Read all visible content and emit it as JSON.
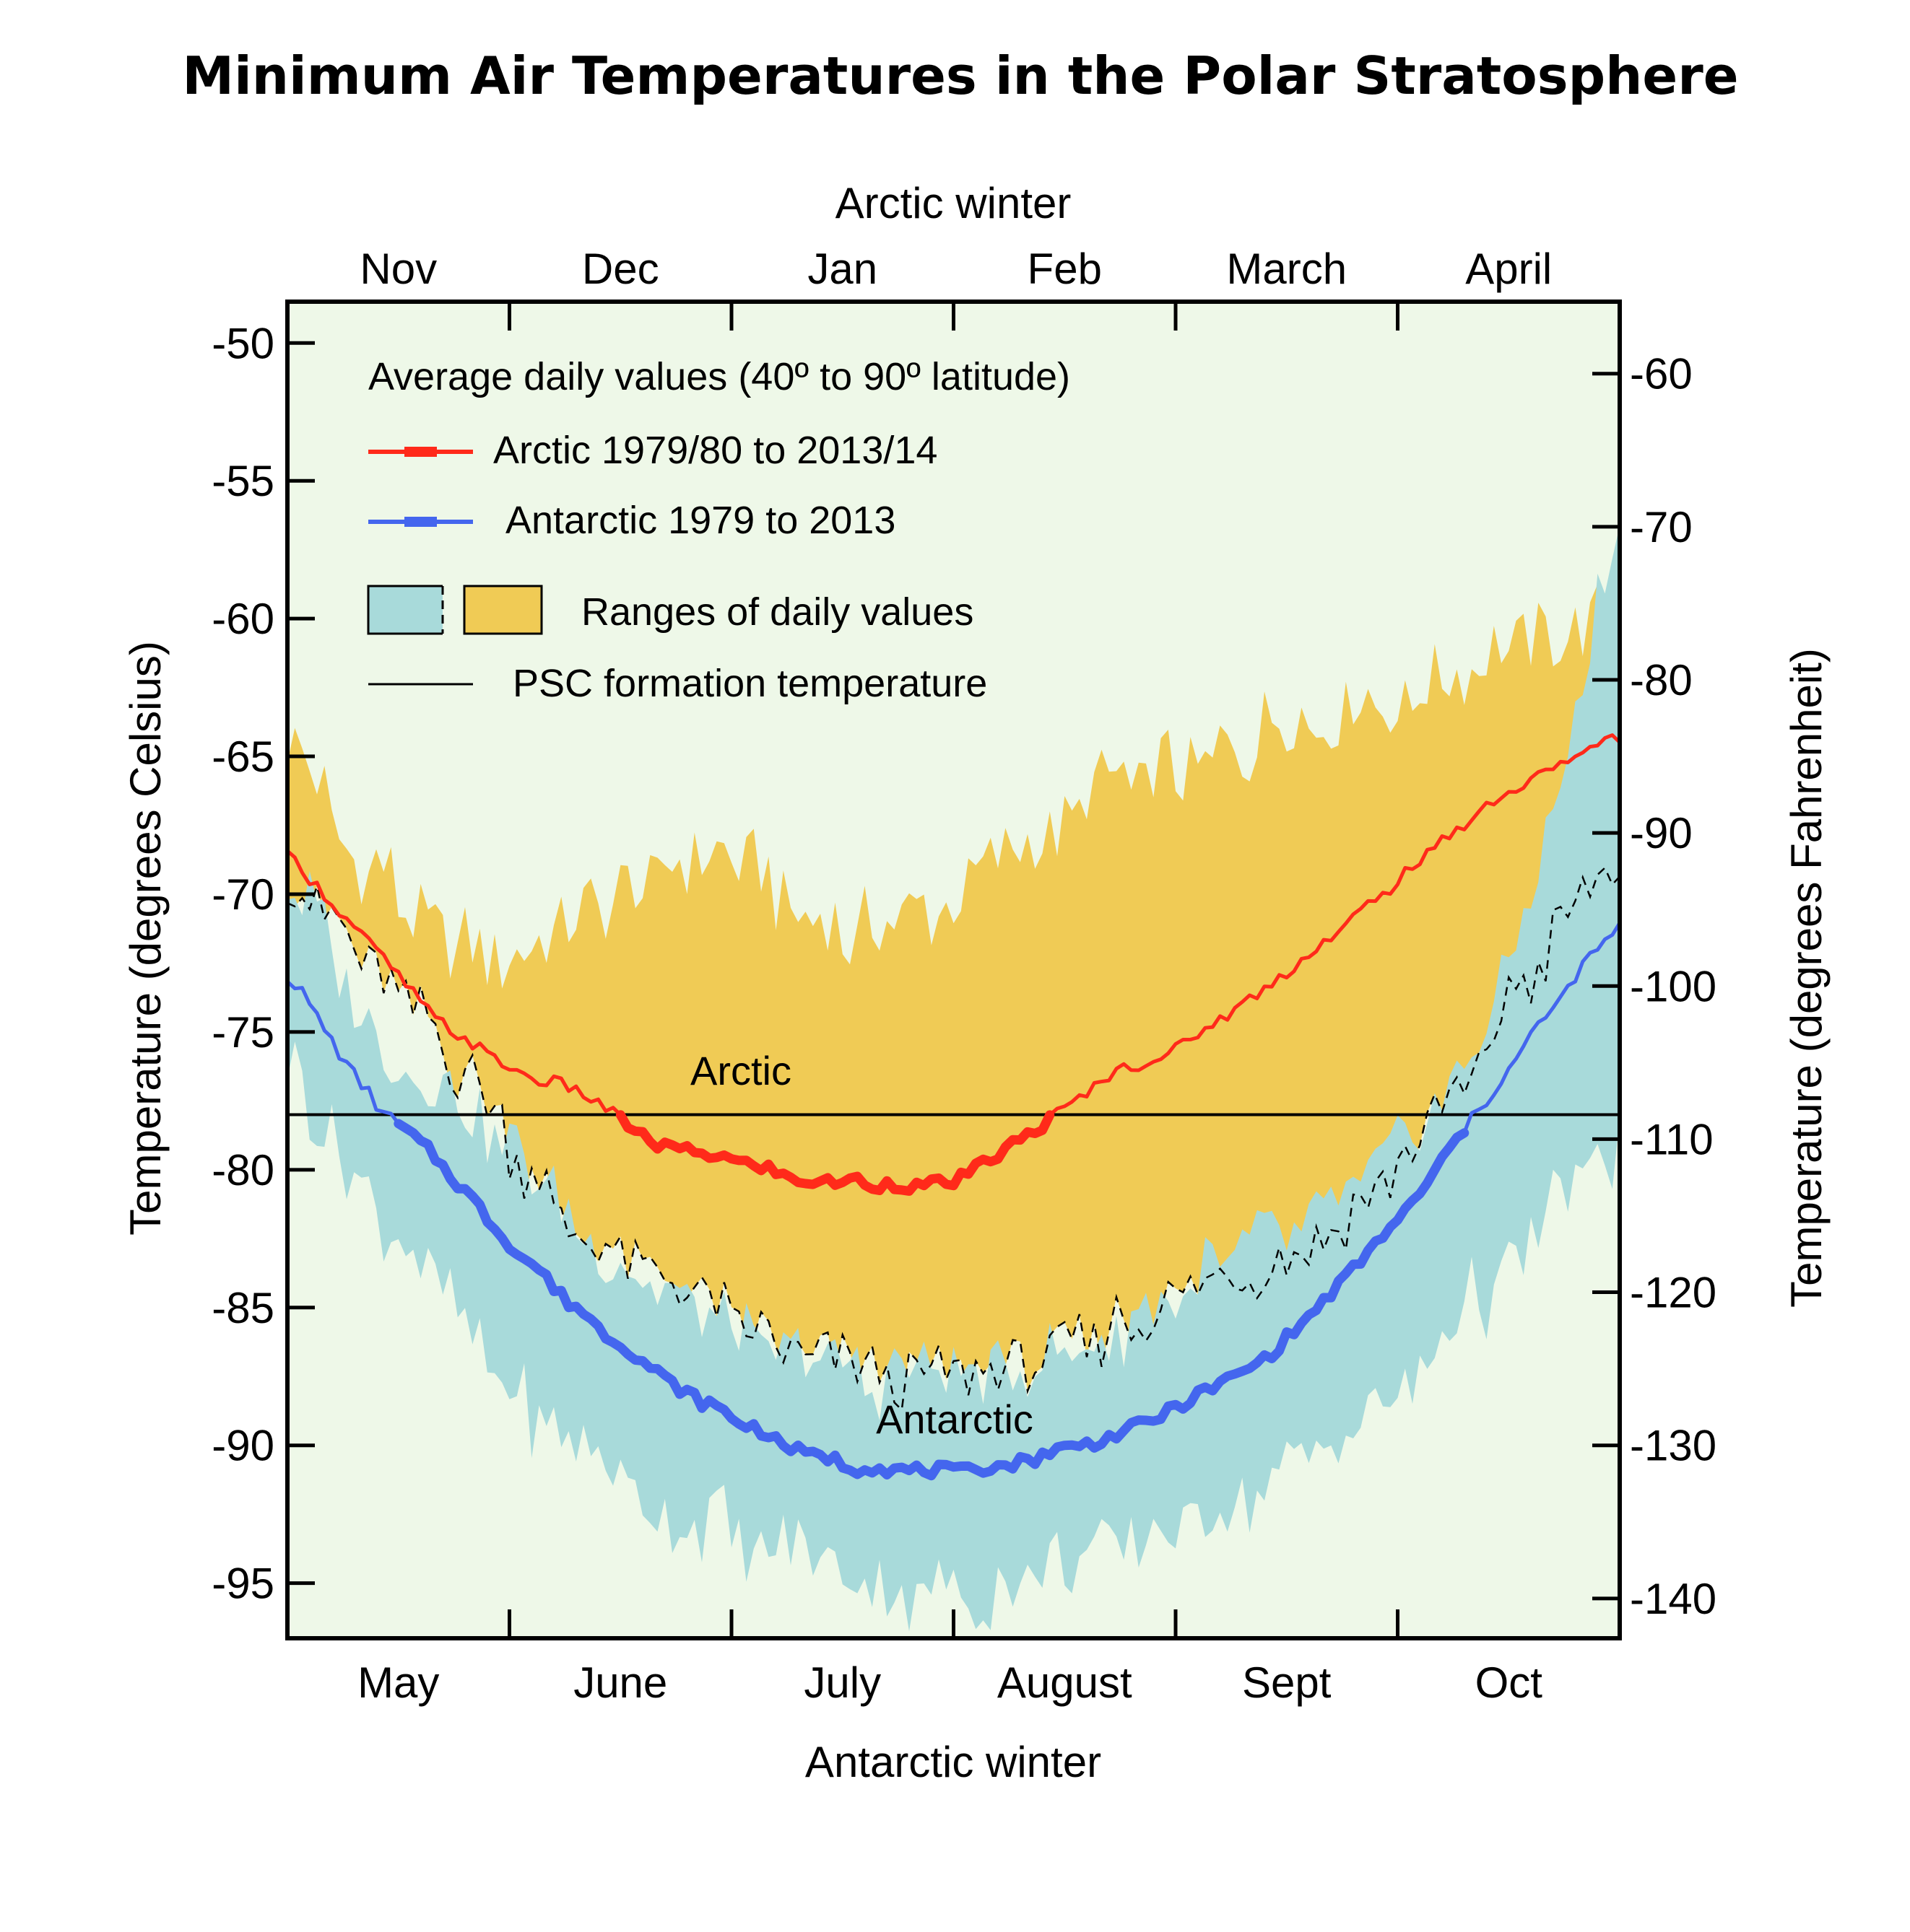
{
  "colors": {
    "plot_bg": "#eef8e8",
    "arctic_line": "#ff2a1a",
    "antarctic_line": "#4466ee",
    "arctic_range": "#f0cb55",
    "antarctic_range": "#a8dada",
    "psc_line": "#000000"
  },
  "chart_data": {
    "type": "area",
    "title": "Minimum Air Temperatures in the Polar Stratosphere",
    "top_axis_title": "Arctic winter",
    "bottom_axis_title": "Antarctic winter",
    "left_axis_title": "Temperature (degrees Celsius)",
    "right_axis_title": "Temperature (degrees Fahrenheit)",
    "arctic_months": [
      "Nov",
      "Dec",
      "Jan",
      "Feb",
      "March",
      "April"
    ],
    "antarctic_months": [
      "May",
      "June",
      "July",
      "August",
      "Sept",
      "Oct"
    ],
    "x_unit": "day of season (0 = start of Nov / May)",
    "xlim": [
      0,
      180
    ],
    "ylim": [
      -97,
      -48.5
    ],
    "celsius_ticks": [
      "-50",
      "-55",
      "-60",
      "-65",
      "-70",
      "-75",
      "-80",
      "-85",
      "-90",
      "-95"
    ],
    "fahrenheit_ticks": [
      "-60",
      "-70",
      "-80",
      "-90",
      "-100",
      "-110",
      "-120",
      "-130",
      "-140"
    ],
    "legend": {
      "heading": "Average daily values   (40º to 90º latitude)",
      "arctic": "Arctic 1979/80 to 2013/14",
      "antarctic": "Antarctic 1979 to 2013",
      "ranges": "Ranges of daily values",
      "psc": "PSC formation temperature"
    },
    "annotations": {
      "arctic": "Arctic",
      "antarctic": "Antarctic"
    },
    "psc_temperature": -78,
    "series": [
      {
        "name": "Arctic 1979/80 to 2013/14",
        "x": [
          0,
          10,
          20,
          30,
          40,
          50,
          60,
          70,
          80,
          90,
          100,
          110,
          120,
          130,
          140,
          150,
          160,
          170,
          180
        ],
        "values": [
          -68.7,
          -71.5,
          -74.5,
          -76.3,
          -77.3,
          -79.1,
          -79.6,
          -80.3,
          -80.5,
          -80.4,
          -78.8,
          -76.8,
          -75.6,
          -73.9,
          -71.8,
          -69.5,
          -67.2,
          -65.5,
          -64.4
        ]
      },
      {
        "name": "Antarctic 1979 to 2013",
        "x": [
          0,
          10,
          20,
          30,
          40,
          50,
          60,
          70,
          80,
          90,
          100,
          110,
          120,
          130,
          140,
          150,
          160,
          170,
          180
        ],
        "values": [
          -73.0,
          -77.0,
          -79.5,
          -82.6,
          -85.2,
          -87.3,
          -89.0,
          -90.2,
          -90.9,
          -90.9,
          -90.5,
          -89.8,
          -88.6,
          -87.2,
          -84.8,
          -81.8,
          -78.2,
          -74.5,
          -71.3
        ]
      },
      {
        "name": "Arctic range min",
        "x": [
          0,
          10,
          20,
          30,
          40,
          50,
          60,
          70,
          80,
          90,
          100,
          110,
          120,
          130,
          140,
          150,
          160,
          170,
          180
        ],
        "values": [
          -69.0,
          -72.5,
          -75.0,
          -79.0,
          -82.5,
          -84.0,
          -85.5,
          -86.5,
          -87.5,
          -87.0,
          -87.0,
          -86.0,
          -84.5,
          -83.5,
          -82.0,
          -80.0,
          -76.5,
          -72.0,
          -69.0
        ]
      },
      {
        "name": "Arctic range max",
        "x": [
          0,
          10,
          20,
          30,
          40,
          50,
          60,
          70,
          80,
          90,
          100,
          110,
          120,
          130,
          140,
          150,
          160,
          170,
          180
        ],
        "values": [
          -65.0,
          -68.5,
          -71.0,
          -72.5,
          -71.0,
          -69.5,
          -69.0,
          -70.5,
          -71.5,
          -70.0,
          -68.0,
          -66.5,
          -65.5,
          -64.5,
          -63.5,
          -63.0,
          -62.0,
          -60.5,
          -60.0
        ]
      },
      {
        "name": "Antarctic range min",
        "x": [
          0,
          10,
          20,
          30,
          40,
          50,
          60,
          70,
          80,
          90,
          100,
          110,
          120,
          130,
          140,
          150,
          160,
          170,
          180
        ],
        "values": [
          -76.5,
          -80.5,
          -84.0,
          -88.0,
          -90.5,
          -92.0,
          -93.0,
          -94.0,
          -95.0,
          -95.5,
          -95.0,
          -94.0,
          -93.0,
          -92.0,
          -90.5,
          -88.0,
          -85.0,
          -82.0,
          -79.0
        ]
      },
      {
        "name": "Antarctic range max",
        "x": [
          0,
          10,
          20,
          30,
          40,
          50,
          60,
          70,
          80,
          90,
          100,
          110,
          120,
          130,
          140,
          150,
          160,
          170,
          180
        ],
        "values": [
          -69.5,
          -74.0,
          -77.0,
          -79.0,
          -82.0,
          -84.5,
          -86.0,
          -87.0,
          -87.5,
          -87.5,
          -87.0,
          -86.0,
          -84.5,
          -83.0,
          -81.5,
          -79.5,
          -76.0,
          -68.0,
          -57.0
        ]
      }
    ]
  }
}
